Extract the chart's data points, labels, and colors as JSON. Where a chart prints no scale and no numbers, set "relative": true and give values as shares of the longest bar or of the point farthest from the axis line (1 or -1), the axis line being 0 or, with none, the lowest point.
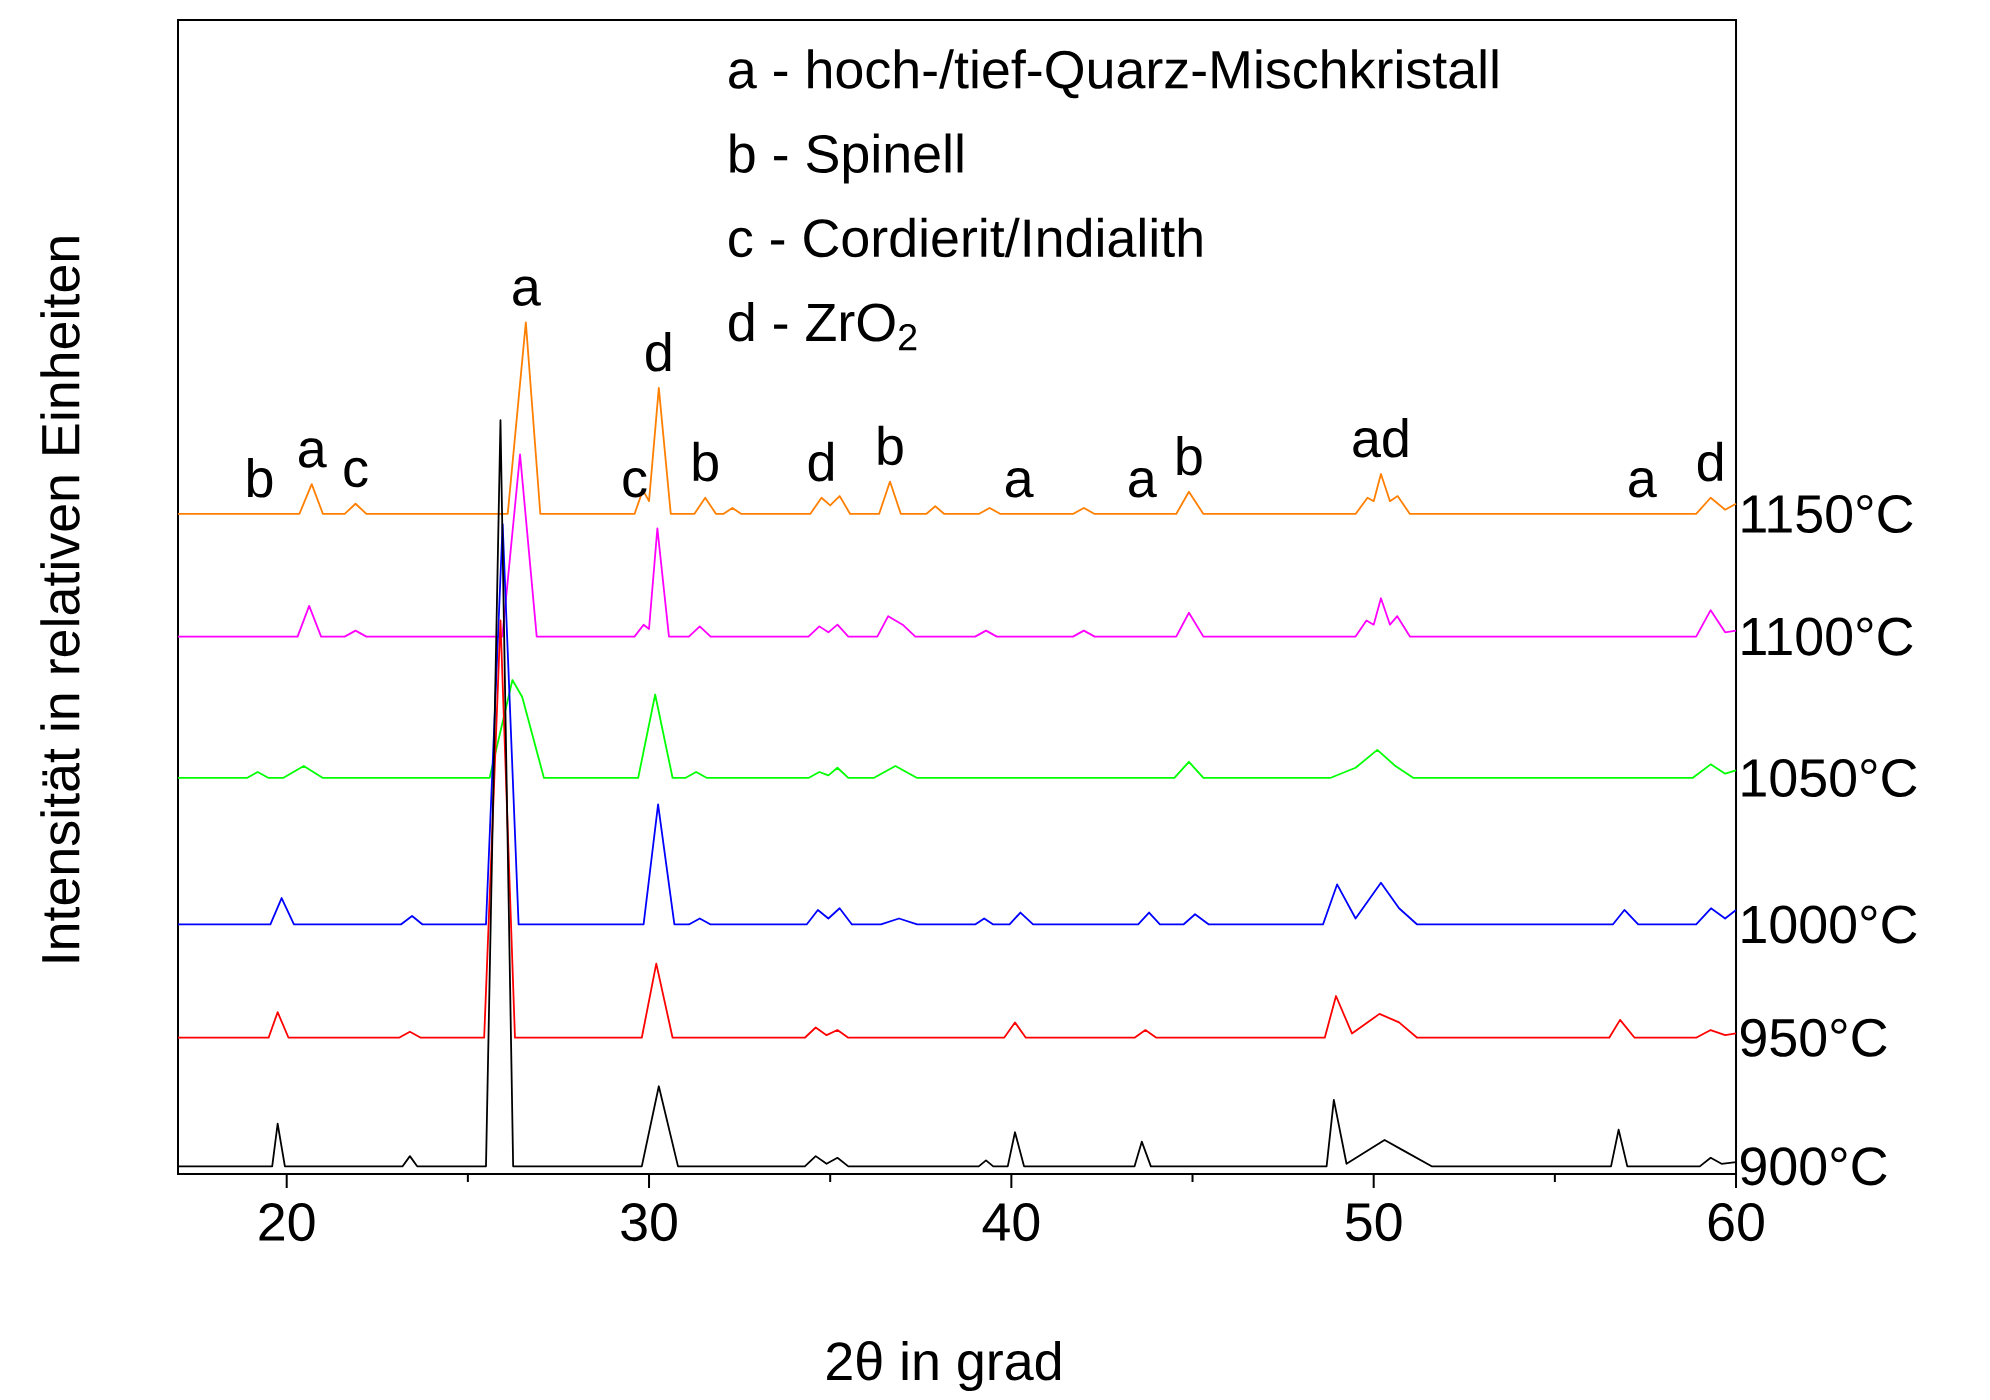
{
  "chart_data": {
    "type": "line",
    "relative": true,
    "xlabel": "2θ in grad",
    "ylabel": "Intensität in relativen Einheiten",
    "xlim": [
      17,
      60
    ],
    "xticks": [
      20,
      30,
      40,
      50,
      60
    ],
    "series": [
      {
        "name": "1150°C",
        "color": "#ff7f00",
        "x": [
          17,
          19.25,
          20.35,
          20.69,
          21.0,
          21.6,
          21.9,
          22.2,
          26.1,
          26.6,
          27.0,
          29.6,
          29.83,
          30.0,
          30.27,
          30.6,
          31.25,
          31.55,
          31.85,
          32.05,
          32.3,
          32.55,
          34.45,
          34.76,
          35.0,
          35.26,
          35.55,
          36.35,
          36.65,
          36.95,
          37.65,
          37.9,
          38.15,
          39.1,
          39.4,
          39.7,
          40.2,
          41.7,
          42.0,
          42.3,
          43.6,
          44.55,
          44.9,
          45.3,
          49.5,
          49.83,
          50.0,
          50.2,
          50.45,
          50.66,
          51.0,
          57.4,
          58.9,
          59.3,
          59.7,
          60
        ],
        "values": [
          0.775,
          0.775,
          0.775,
          0.81,
          0.775,
          0.775,
          0.787,
          0.775,
          0.775,
          1.0,
          0.775,
          0.775,
          0.803,
          0.79,
          0.923,
          0.775,
          0.775,
          0.794,
          0.775,
          0.775,
          0.782,
          0.775,
          0.775,
          0.794,
          0.785,
          0.796,
          0.775,
          0.775,
          0.813,
          0.775,
          0.775,
          0.784,
          0.775,
          0.775,
          0.782,
          0.775,
          0.775,
          0.775,
          0.782,
          0.775,
          0.775,
          0.775,
          0.801,
          0.775,
          0.775,
          0.794,
          0.79,
          0.822,
          0.79,
          0.796,
          0.775,
          0.775,
          0.775,
          0.794,
          0.78,
          0.787
        ]
      },
      {
        "name": "1100°C",
        "color": "#ff00ff",
        "x": [
          17,
          20.3,
          20.62,
          20.95,
          21.6,
          21.9,
          22.2,
          25.95,
          26.44,
          26.9,
          29.6,
          29.85,
          30.0,
          30.23,
          30.55,
          31.1,
          31.4,
          31.7,
          34.4,
          34.7,
          34.95,
          35.2,
          35.5,
          36.3,
          36.6,
          37.0,
          37.35,
          39.0,
          39.3,
          39.6,
          41.7,
          42.0,
          42.3,
          44.55,
          44.9,
          45.3,
          49.5,
          49.8,
          50.0,
          50.2,
          50.45,
          50.65,
          51.0,
          58.9,
          59.3,
          59.7,
          60
        ],
        "values": [
          0.631,
          0.631,
          0.667,
          0.631,
          0.631,
          0.638,
          0.631,
          0.631,
          0.845,
          0.631,
          0.631,
          0.645,
          0.64,
          0.758,
          0.631,
          0.631,
          0.643,
          0.631,
          0.631,
          0.643,
          0.636,
          0.645,
          0.631,
          0.631,
          0.655,
          0.645,
          0.631,
          0.631,
          0.638,
          0.631,
          0.631,
          0.638,
          0.631,
          0.631,
          0.659,
          0.631,
          0.631,
          0.65,
          0.645,
          0.676,
          0.645,
          0.655,
          0.631,
          0.631,
          0.662,
          0.636,
          0.638
        ]
      },
      {
        "name": "1050°C",
        "color": "#00ff00",
        "x": [
          17,
          18.9,
          19.2,
          19.5,
          19.9,
          20.47,
          21.0,
          25.6,
          26.23,
          26.5,
          27.1,
          29.7,
          30.17,
          30.65,
          31.0,
          31.3,
          31.6,
          34.4,
          34.7,
          34.95,
          35.2,
          35.5,
          36.2,
          36.8,
          37.4,
          44.5,
          44.9,
          45.3,
          48.8,
          49.5,
          50.1,
          50.6,
          51.1,
          58.8,
          59.3,
          59.7,
          60
        ],
        "values": [
          0.465,
          0.465,
          0.472,
          0.465,
          0.465,
          0.479,
          0.465,
          0.465,
          0.58,
          0.56,
          0.465,
          0.465,
          0.563,
          0.465,
          0.465,
          0.472,
          0.465,
          0.465,
          0.472,
          0.468,
          0.477,
          0.465,
          0.465,
          0.479,
          0.465,
          0.465,
          0.484,
          0.465,
          0.465,
          0.477,
          0.498,
          0.479,
          0.465,
          0.465,
          0.481,
          0.47,
          0.474
        ]
      },
      {
        "name": "1000°C",
        "color": "#0000ff",
        "x": [
          17,
          19.55,
          19.86,
          20.2,
          23.15,
          23.46,
          23.75,
          25.5,
          25.96,
          26.4,
          29.85,
          30.25,
          30.7,
          31.1,
          31.4,
          31.7,
          34.35,
          34.66,
          34.95,
          35.26,
          35.6,
          36.4,
          36.9,
          37.4,
          39.0,
          39.25,
          39.5,
          39.95,
          40.25,
          40.6,
          43.5,
          43.8,
          44.1,
          44.75,
          45.07,
          45.45,
          48.6,
          48.99,
          49.5,
          50.2,
          50.7,
          51.2,
          56.6,
          56.92,
          57.3,
          58.9,
          59.31,
          59.7,
          60
        ],
        "values": [
          0.293,
          0.293,
          0.324,
          0.293,
          0.293,
          0.303,
          0.293,
          0.293,
          0.763,
          0.293,
          0.293,
          0.434,
          0.293,
          0.293,
          0.3,
          0.293,
          0.293,
          0.31,
          0.3,
          0.312,
          0.293,
          0.293,
          0.3,
          0.293,
          0.293,
          0.3,
          0.293,
          0.293,
          0.307,
          0.293,
          0.293,
          0.307,
          0.293,
          0.293,
          0.305,
          0.293,
          0.293,
          0.34,
          0.3,
          0.342,
          0.312,
          0.293,
          0.293,
          0.31,
          0.293,
          0.293,
          0.312,
          0.3,
          0.31
        ]
      },
      {
        "name": "950°C",
        "color": "#ff0000",
        "x": [
          17,
          19.5,
          19.75,
          20.05,
          23.1,
          23.4,
          23.7,
          25.45,
          25.9,
          26.3,
          29.8,
          30.2,
          30.65,
          34.3,
          34.6,
          34.9,
          35.2,
          35.5,
          39.8,
          40.1,
          40.4,
          43.4,
          43.7,
          44.0,
          48.65,
          48.96,
          49.4,
          50.16,
          50.7,
          51.2,
          56.5,
          56.8,
          57.2,
          58.9,
          59.3,
          59.7,
          60
        ],
        "values": [
          0.16,
          0.16,
          0.19,
          0.16,
          0.16,
          0.167,
          0.16,
          0.16,
          0.65,
          0.16,
          0.16,
          0.247,
          0.16,
          0.16,
          0.172,
          0.163,
          0.169,
          0.16,
          0.16,
          0.178,
          0.16,
          0.16,
          0.169,
          0.16,
          0.16,
          0.209,
          0.165,
          0.188,
          0.178,
          0.16,
          0.16,
          0.181,
          0.16,
          0.16,
          0.169,
          0.163,
          0.165
        ]
      },
      {
        "name": "900°C",
        "color": "#000000",
        "x": [
          17,
          19.6,
          19.75,
          19.95,
          23.2,
          23.4,
          23.6,
          25.5,
          25.9,
          26.25,
          29.8,
          30.27,
          30.8,
          34.3,
          34.6,
          34.9,
          35.2,
          35.5,
          39.1,
          39.3,
          39.5,
          39.9,
          40.1,
          40.35,
          43.4,
          43.6,
          43.85,
          48.7,
          48.9,
          49.25,
          50.3,
          50.8,
          51.6,
          56.55,
          56.76,
          57.0,
          59.0,
          59.3,
          59.6,
          60
        ],
        "values": [
          0.009,
          0.009,
          0.059,
          0.009,
          0.009,
          0.021,
          0.009,
          0.009,
          0.885,
          0.009,
          0.009,
          0.103,
          0.009,
          0.009,
          0.021,
          0.012,
          0.019,
          0.009,
          0.009,
          0.016,
          0.009,
          0.009,
          0.049,
          0.009,
          0.009,
          0.038,
          0.009,
          0.009,
          0.087,
          0.012,
          0.04,
          0.028,
          0.009,
          0.009,
          0.052,
          0.009,
          0.009,
          0.019,
          0.012,
          0.014
        ]
      }
    ],
    "annotations": [
      "a - hoch-/tief-Quarz-Mischkristall",
      "b - Spinell",
      "c - Cordierit/Indialith",
      "d - ZrO$_{2}$",
      {
        "text": "b",
        "x": 19.25,
        "y": 0.775
      },
      {
        "text": "a",
        "x": 20.69,
        "y": 0.81
      },
      {
        "text": "c",
        "x": 21.9,
        "y": 0.787
      },
      {
        "text": "a",
        "x": 26.6,
        "y": 1.0
      },
      {
        "text": "c",
        "x": 29.6,
        "y": 0.775
      },
      {
        "text": "d",
        "x": 30.27,
        "y": 0.923
      },
      {
        "text": "b",
        "x": 31.55,
        "y": 0.794
      },
      {
        "text": "d",
        "x": 34.76,
        "y": 0.794
      },
      {
        "text": "b",
        "x": 36.65,
        "y": 0.813
      },
      {
        "text": "a",
        "x": 40.2,
        "y": 0.775
      },
      {
        "text": "a",
        "x": 43.6,
        "y": 0.775
      },
      {
        "text": "b",
        "x": 44.9,
        "y": 0.801
      },
      {
        "text": "ad",
        "x": 50.2,
        "y": 0.822
      },
      {
        "text": "a",
        "x": 57.4,
        "y": 0.775
      },
      {
        "text": "d",
        "x": 59.3,
        "y": 0.794
      }
    ]
  }
}
